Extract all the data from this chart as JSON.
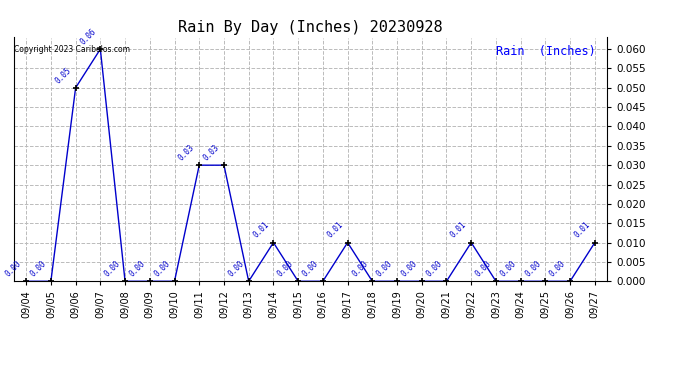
{
  "title": "Rain By Day (Inches) 20230928",
  "legend_label": "Rain  (Inches)",
  "copyright_text": "Copyright 2023 Caribelos.com",
  "dates": [
    "09/04",
    "09/05",
    "09/06",
    "09/07",
    "09/08",
    "09/09",
    "09/10",
    "09/11",
    "09/12",
    "09/13",
    "09/14",
    "09/15",
    "09/16",
    "09/17",
    "09/18",
    "09/19",
    "09/20",
    "09/21",
    "09/22",
    "09/23",
    "09/24",
    "09/25",
    "09/26",
    "09/27"
  ],
  "values": [
    0.0,
    0.0,
    0.05,
    0.06,
    0.0,
    0.0,
    0.0,
    0.03,
    0.03,
    0.0,
    0.01,
    0.0,
    0.0,
    0.01,
    0.0,
    0.0,
    0.0,
    0.0,
    0.01,
    0.0,
    0.0,
    0.0,
    0.0,
    0.01
  ],
  "line_color": "#0000cc",
  "marker_color": "#000000",
  "bg_color": "#ffffff",
  "grid_color": "#bbbbbb",
  "ylim": [
    0.0,
    0.063
  ],
  "yticks": [
    0.0,
    0.005,
    0.01,
    0.015,
    0.02,
    0.025,
    0.03,
    0.035,
    0.04,
    0.045,
    0.05,
    0.055,
    0.06
  ],
  "title_color": "#000000",
  "legend_color": "#0000ff",
  "annotation_color": "#0000cc",
  "copyright_color": "#000000"
}
